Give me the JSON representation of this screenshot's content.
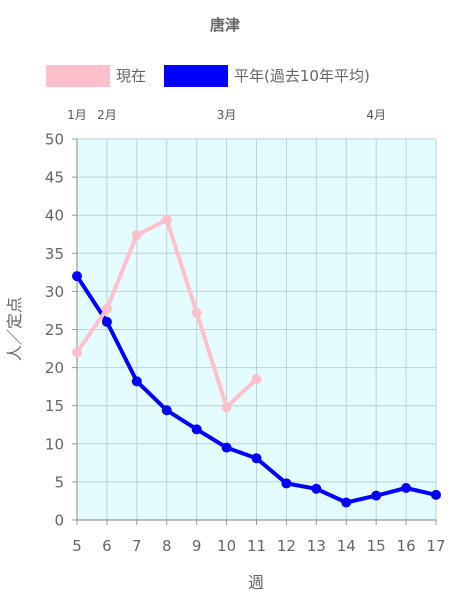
{
  "chart_data": {
    "type": "line",
    "title": "唐津",
    "xlabel": "週",
    "ylabel": "人／定点",
    "x": [
      5,
      6,
      7,
      8,
      9,
      10,
      11,
      12,
      13,
      14,
      15,
      16,
      17
    ],
    "xlim": [
      5,
      17
    ],
    "ylim": [
      0,
      50
    ],
    "yticks": [
      0,
      5,
      10,
      15,
      20,
      25,
      30,
      35,
      40,
      45,
      50
    ],
    "month_labels": [
      {
        "label": "1月",
        "x": 5
      },
      {
        "label": "2月",
        "x": 6
      },
      {
        "label": "3月",
        "x": 10
      },
      {
        "label": "4月",
        "x": 15
      }
    ],
    "grid": true,
    "legend_position": "top",
    "series": [
      {
        "name": "現在",
        "color": "#ffc0cb",
        "x": [
          5,
          6,
          7,
          8,
          9,
          10,
          11
        ],
        "values": [
          22.0,
          27.7,
          37.4,
          39.4,
          27.2,
          14.8,
          18.5
        ]
      },
      {
        "name": "平年(過去10年平均)",
        "color": "#0000ff",
        "x": [
          5,
          6,
          7,
          8,
          9,
          10,
          11,
          12,
          13,
          14,
          15,
          16,
          17
        ],
        "values": [
          32.0,
          26.0,
          18.2,
          14.4,
          11.9,
          9.5,
          8.1,
          4.8,
          4.1,
          2.3,
          3.2,
          4.2,
          3.3
        ]
      }
    ],
    "colors": {
      "plot_background": "#e5fcff",
      "grid": "#b8d4d8",
      "axis": "#999999",
      "text": "#666666"
    }
  }
}
